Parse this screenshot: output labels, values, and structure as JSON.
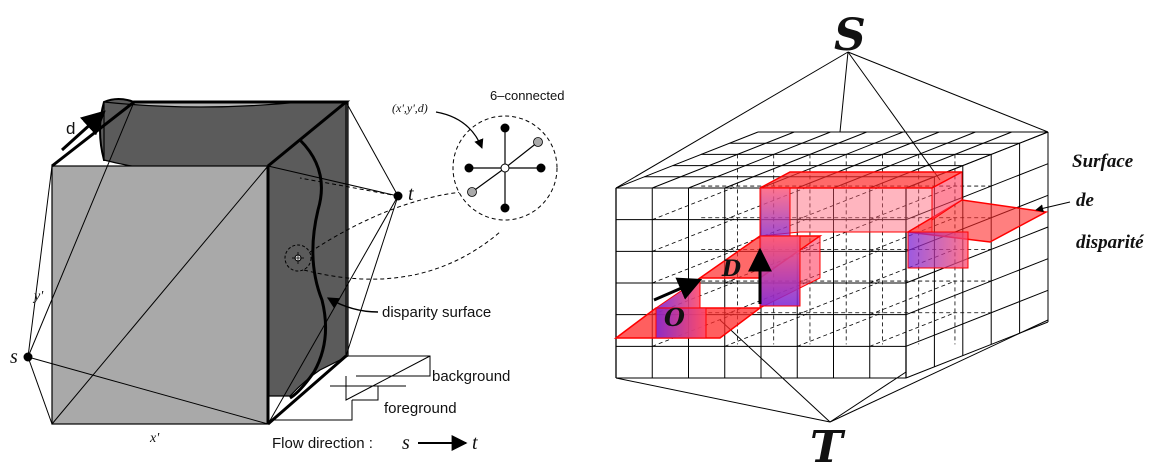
{
  "left_diagram": {
    "label_d": "d",
    "label_y": "y'",
    "label_x": "x'",
    "label_s": "s",
    "label_t": "t",
    "point_label": "(x',y',d)",
    "connectivity": "6–connected",
    "disparity_surface": "disparity surface",
    "background": "background",
    "foreground": "foreground",
    "flow_prefix": "Flow direction :",
    "flow_s": "s",
    "flow_t": "t"
  },
  "right_diagram": {
    "label_S": "S",
    "label_T": "T",
    "label_O": "O",
    "label_D": "D",
    "surface_line1": "Surface",
    "surface_line2": "de",
    "surface_line3": "disparité"
  },
  "colors": {
    "gray_front": "#a9a9a9",
    "gray_dark": "#5c5c5c",
    "red_surface": "#ff2020",
    "purple": "#8a1fd0"
  }
}
